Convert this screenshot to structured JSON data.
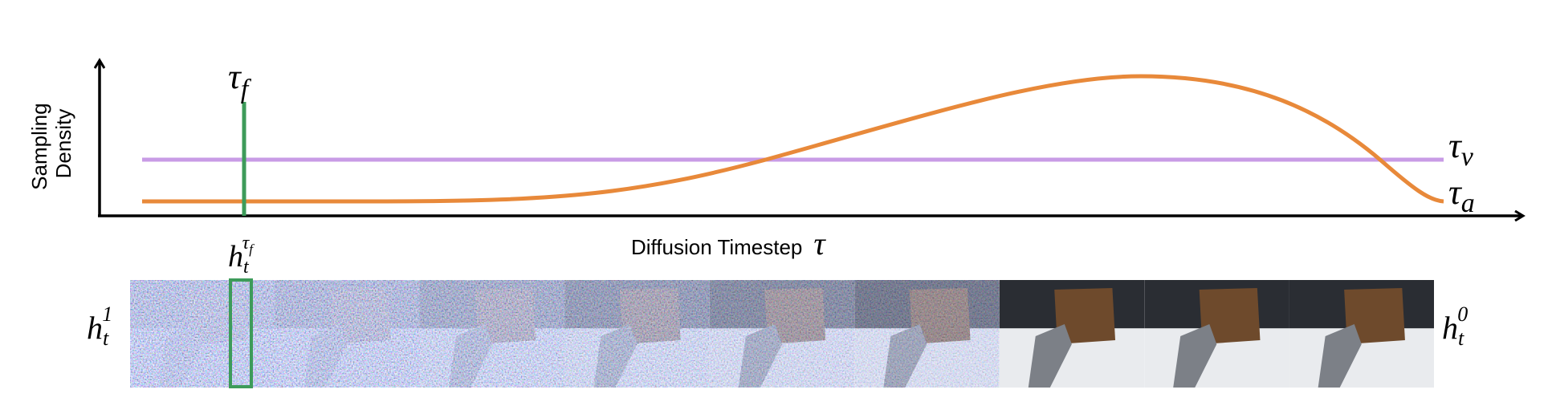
{
  "y_axis_label": [
    "Sampling",
    "Density"
  ],
  "x_axis_label": {
    "text": "Diffusion Timestep",
    "symbol": "τ"
  },
  "tau_f": {
    "symbol": "τ",
    "sub": "f"
  },
  "tau_v": {
    "symbol": "τ",
    "sub": "v"
  },
  "tau_a": {
    "symbol": "τ",
    "sub": "a"
  },
  "frame_label": {
    "base": "h",
    "sub": "t",
    "sup": "τ",
    "sup_sub": "f"
  },
  "start_label": {
    "base": "h",
    "sub": "t",
    "sup": "1"
  },
  "end_label": {
    "base": "h",
    "sub": "t",
    "sup": "0"
  }
}
